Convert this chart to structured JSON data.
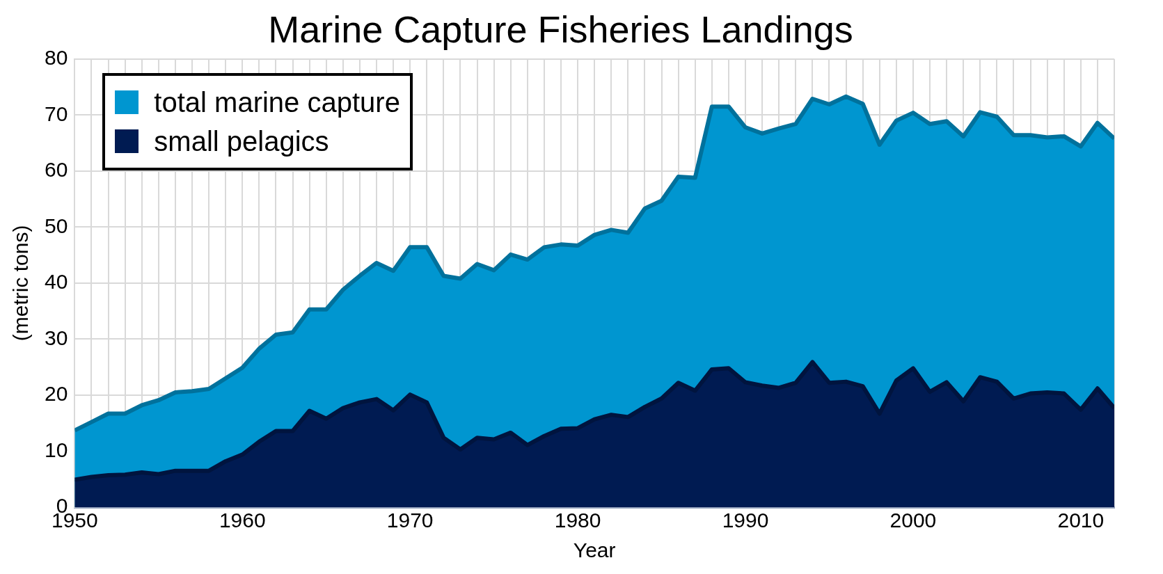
{
  "chart_data": {
    "type": "area",
    "title": "Marine Capture Fisheries Landings",
    "xlabel": "Year",
    "ylabel": "(metric tons)",
    "x": [
      1950,
      1951,
      1952,
      1953,
      1954,
      1955,
      1956,
      1957,
      1958,
      1959,
      1960,
      1961,
      1962,
      1963,
      1964,
      1965,
      1966,
      1967,
      1968,
      1969,
      1970,
      1971,
      1972,
      1973,
      1974,
      1975,
      1976,
      1977,
      1978,
      1979,
      1980,
      1981,
      1982,
      1983,
      1984,
      1985,
      1986,
      1987,
      1988,
      1989,
      1990,
      1991,
      1992,
      1993,
      1994,
      1995,
      1996,
      1997,
      1998,
      1999,
      2000,
      2001,
      2002,
      2003,
      2004,
      2005,
      2006,
      2007,
      2008,
      2009,
      2010,
      2011,
      2012
    ],
    "series": [
      {
        "name": "total marine capture",
        "color": "#0096d0",
        "values": [
          13.7,
          15.2,
          16.7,
          16.7,
          18.2,
          19.1,
          20.5,
          20.7,
          21.1,
          23,
          24.9,
          28.3,
          30.8,
          31.2,
          35.3,
          35.3,
          38.8,
          41.3,
          43.6,
          42.2,
          46.4,
          46.4,
          41.3,
          40.8,
          43.4,
          42.3,
          45.1,
          44.2,
          46.4,
          46.9,
          46.7,
          48.6,
          49.5,
          49,
          53.3,
          54.7,
          59,
          58.8,
          71.5,
          71.5,
          67.8,
          66.7,
          67.6,
          68.4,
          72.9,
          71.9,
          73.3,
          72,
          64.7,
          69,
          70.4,
          68.4,
          68.9,
          66.2,
          70.5,
          69.7,
          66.4,
          66.4,
          66,
          66.2,
          64.4,
          68.6,
          65.8
        ]
      },
      {
        "name": "small pelagics",
        "color": "#001b52",
        "values": [
          4.9,
          5.4,
          5.7,
          5.8,
          6.2,
          5.9,
          6.5,
          6.5,
          6.5,
          8.2,
          9.4,
          11.7,
          13.6,
          13.6,
          17.2,
          15.8,
          17.7,
          18.7,
          19.3,
          17.3,
          20.1,
          18.7,
          12.4,
          10.3,
          12.4,
          12.1,
          13.3,
          11.1,
          12.7,
          14,
          14.1,
          15.7,
          16.5,
          16.1,
          17.9,
          19.4,
          22.2,
          20.8,
          24.6,
          24.8,
          22.3,
          21.7,
          21.3,
          22.2,
          25.9,
          22.2,
          22.4,
          21.6,
          16.7,
          22.6,
          24.8,
          20.6,
          22.3,
          18.9,
          23.2,
          22.4,
          19.4,
          20.3,
          20.5,
          20.3,
          17.4,
          21.2,
          17.7
        ]
      }
    ],
    "xlim": [
      1950,
      2012
    ],
    "xticks": [
      1950,
      {
        "value": 1951,
        "label": null
      },
      {
        "value": 1952,
        "label": null
      },
      {
        "value": 1953,
        "label": null
      },
      {
        "value": 1954,
        "label": null
      },
      {
        "value": 1955,
        "label": null
      },
      {
        "value": 1956,
        "label": null
      },
      {
        "value": 1957,
        "label": null
      },
      {
        "value": 1958,
        "label": null
      },
      {
        "value": 1959,
        "label": null
      },
      1960,
      {
        "value": 1961,
        "label": null
      },
      {
        "value": 1962,
        "label": null
      },
      {
        "value": 1963,
        "label": null
      },
      {
        "value": 1964,
        "label": null
      },
      {
        "value": 1965,
        "label": null
      },
      {
        "value": 1966,
        "label": null
      },
      {
        "value": 1967,
        "label": null
      },
      {
        "value": 1968,
        "label": null
      },
      {
        "value": 1969,
        "label": null
      },
      1970,
      {
        "value": 1971,
        "label": null
      },
      {
        "value": 1972,
        "label": null
      },
      {
        "value": 1973,
        "label": null
      },
      {
        "value": 1974,
        "label": null
      },
      {
        "value": 1975,
        "label": null
      },
      {
        "value": 1976,
        "label": null
      },
      {
        "value": 1977,
        "label": null
      },
      {
        "value": 1978,
        "label": null
      },
      {
        "value": 1979,
        "label": null
      },
      1980,
      {
        "value": 1981,
        "label": null
      },
      {
        "value": 1982,
        "label": null
      },
      {
        "value": 1983,
        "label": null
      },
      {
        "value": 1984,
        "label": null
      },
      {
        "value": 1985,
        "label": null
      },
      {
        "value": 1986,
        "label": null
      },
      {
        "value": 1987,
        "label": null
      },
      {
        "value": 1988,
        "label": null
      },
      {
        "value": 1989,
        "label": null
      },
      1990,
      {
        "value": 1991,
        "label": null
      },
      {
        "value": 1992,
        "label": null
      },
      {
        "value": 1993,
        "label": null
      },
      {
        "value": 1994,
        "label": null
      },
      {
        "value": 1995,
        "label": null
      },
      {
        "value": 1996,
        "label": null
      },
      {
        "value": 1997,
        "label": null
      },
      {
        "value": 1998,
        "label": null
      },
      {
        "value": 1999,
        "label": null
      },
      2000,
      {
        "value": 2001,
        "label": null
      },
      {
        "value": 2002,
        "label": null
      },
      {
        "value": 2003,
        "label": null
      },
      {
        "value": 2004,
        "label": null
      },
      {
        "value": 2005,
        "label": null
      },
      {
        "value": 2006,
        "label": null
      },
      {
        "value": 2007,
        "label": null
      },
      {
        "value": 2008,
        "label": null
      },
      {
        "value": 2009,
        "label": null
      },
      2010,
      {
        "value": 2011,
        "label": null
      },
      {
        "value": 2012,
        "label": null
      }
    ],
    "ylim": [
      0,
      80
    ],
    "yticks": [
      0,
      10,
      20,
      30,
      40,
      50,
      60,
      70,
      80
    ],
    "grid": true,
    "legend": "top left",
    "marker": "none"
  }
}
